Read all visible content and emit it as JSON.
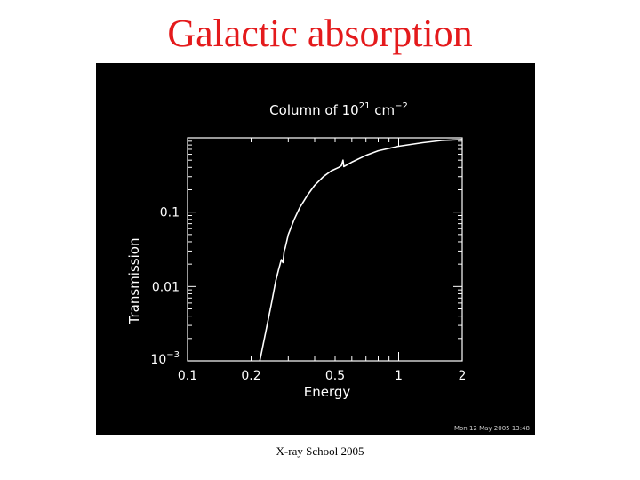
{
  "slide": {
    "title": "Galactic absorption",
    "footer": "X-ray School 2005",
    "timestamp": "Mon 12 May 2005 13:48",
    "title_color": "#e41a1c",
    "panel_color": "#000000",
    "line_color": "#ffffff"
  },
  "chart_data": {
    "type": "line",
    "title_text": "Column of 10",
    "title_sup": "21",
    "title_unit": " cm",
    "title_unit_sup": "−2",
    "xlabel": "Energy",
    "ylabel": "Transmission",
    "xscale": "log",
    "yscale": "log",
    "xlim": [
      0.1,
      2
    ],
    "ylim": [
      0.001,
      1
    ],
    "xticks": [
      {
        "value": 0.1,
        "label": "0.1"
      },
      {
        "value": 0.2,
        "label": "0.2"
      },
      {
        "value": 0.5,
        "label": "0.5"
      },
      {
        "value": 1,
        "label": "1"
      },
      {
        "value": 2,
        "label": "2"
      }
    ],
    "yticks": [
      {
        "value": 0.1,
        "label": "0.1"
      },
      {
        "value": 0.01,
        "label": "0.01"
      }
    ],
    "ytick_bottom": {
      "value": 0.001,
      "base": "10",
      "exp": "−3"
    },
    "grid": false,
    "series": [
      {
        "x": [
          0.22,
          0.235,
          0.25,
          0.262,
          0.27,
          0.278,
          0.283,
          0.287,
          0.29,
          0.3,
          0.32,
          0.34,
          0.37,
          0.4,
          0.44,
          0.48,
          0.52,
          0.535,
          0.545,
          0.55,
          0.6,
          0.7,
          0.8,
          1.0,
          1.3,
          1.6,
          2.0
        ],
        "y": [
          0.001,
          0.0025,
          0.006,
          0.012,
          0.017,
          0.023,
          0.021,
          0.03,
          0.033,
          0.05,
          0.08,
          0.115,
          0.17,
          0.23,
          0.3,
          0.36,
          0.4,
          0.42,
          0.5,
          0.41,
          0.47,
          0.58,
          0.67,
          0.77,
          0.86,
          0.92,
          0.95
        ]
      }
    ]
  }
}
